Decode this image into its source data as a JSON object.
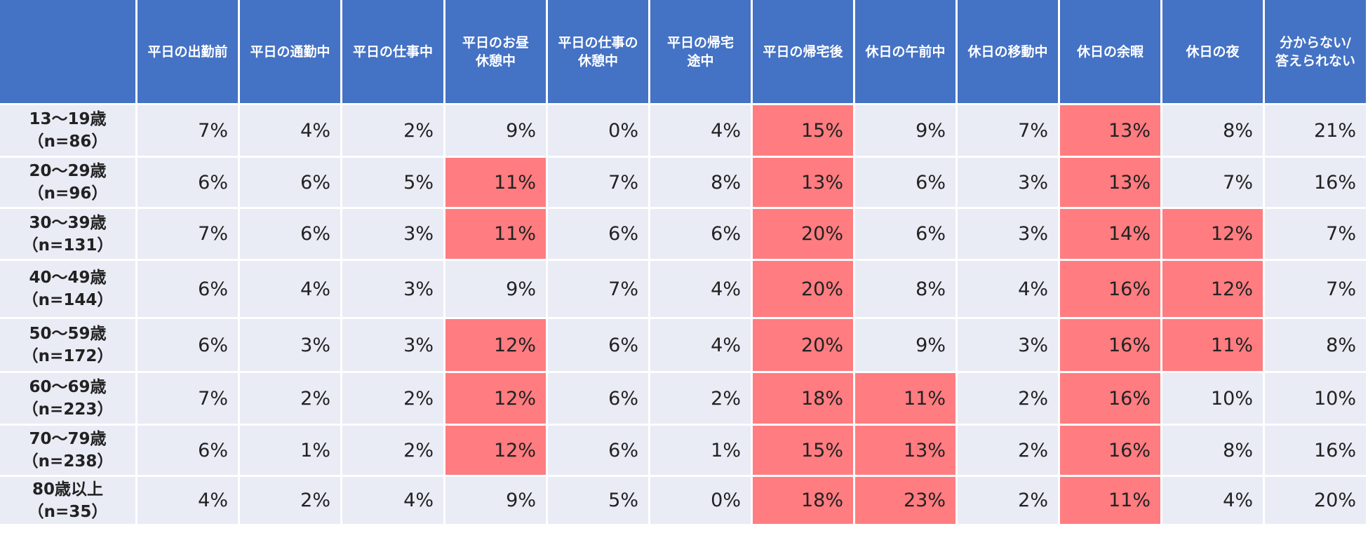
{
  "chart_data": {
    "type": "table",
    "columns": [
      "平日の出勤前",
      "平日の通勤中",
      "平日の仕事中",
      "平日のお昼休憩中",
      "平日の仕事の休憩中",
      "平日の帰宅途中",
      "平日の帰宅後",
      "休日の午前中",
      "休日の移動中",
      "休日の余暇",
      "休日の夜",
      "分からない/答えられない"
    ],
    "column_labels": [
      [
        "平日の出勤前"
      ],
      [
        "平日の通勤中"
      ],
      [
        "平日の仕事中"
      ],
      [
        "平日のお昼",
        "休憩中"
      ],
      [
        "平日の仕事の",
        "休憩中"
      ],
      [
        "平日の帰宅",
        "途中"
      ],
      [
        "平日の帰宅後"
      ],
      [
        "休日の午前中"
      ],
      [
        "休日の移動中"
      ],
      [
        "休日の余暇"
      ],
      [
        "休日の夜"
      ],
      [
        "分からない/",
        "答えられない"
      ]
    ],
    "rows": [
      {
        "group": "13～19歳",
        "n": "（n=86）",
        "values": [
          "7%",
          "4%",
          "2%",
          "9%",
          "0%",
          "4%",
          "15%",
          "9%",
          "7%",
          "13%",
          "8%",
          "21%"
        ],
        "highlight": [
          6,
          9
        ]
      },
      {
        "group": "20～29歳",
        "n": "（n=96）",
        "values": [
          "6%",
          "6%",
          "5%",
          "11%",
          "7%",
          "8%",
          "13%",
          "6%",
          "3%",
          "13%",
          "7%",
          "16%"
        ],
        "highlight": [
          3,
          6,
          9
        ]
      },
      {
        "group": "30～39歳",
        "n": "（n=131）",
        "values": [
          "7%",
          "6%",
          "3%",
          "11%",
          "6%",
          "6%",
          "20%",
          "6%",
          "3%",
          "14%",
          "12%",
          "7%"
        ],
        "highlight": [
          3,
          6,
          9,
          10
        ]
      },
      {
        "group": "40～49歳",
        "n": "（n=144）",
        "values": [
          "6%",
          "4%",
          "3%",
          "9%",
          "7%",
          "4%",
          "20%",
          "8%",
          "4%",
          "16%",
          "12%",
          "7%"
        ],
        "highlight": [
          6,
          9,
          10
        ]
      },
      {
        "group": "50～59歳",
        "n": "（n=172）",
        "values": [
          "6%",
          "3%",
          "3%",
          "12%",
          "6%",
          "4%",
          "20%",
          "9%",
          "3%",
          "16%",
          "11%",
          "8%"
        ],
        "highlight": [
          3,
          6,
          9,
          10
        ]
      },
      {
        "group": "60～69歳",
        "n": "（n=223）",
        "values": [
          "7%",
          "2%",
          "2%",
          "12%",
          "6%",
          "2%",
          "18%",
          "11%",
          "2%",
          "16%",
          "10%",
          "10%"
        ],
        "highlight": [
          3,
          6,
          7,
          9
        ]
      },
      {
        "group": "70～79歳",
        "n": "（n=238）",
        "values": [
          "6%",
          "1%",
          "2%",
          "12%",
          "6%",
          "1%",
          "15%",
          "13%",
          "2%",
          "16%",
          "8%",
          "16%"
        ],
        "highlight": [
          3,
          6,
          7,
          9
        ]
      },
      {
        "group": "80歳以上",
        "n": "（n=35）",
        "values": [
          "4%",
          "2%",
          "4%",
          "9%",
          "5%",
          "0%",
          "18%",
          "23%",
          "2%",
          "11%",
          "4%",
          "20%"
        ],
        "highlight": [
          6,
          7,
          9
        ]
      }
    ],
    "colors": {
      "header": "#4472c4",
      "cell": "#e9ebf5",
      "highlight": "#ff7c80"
    }
  }
}
